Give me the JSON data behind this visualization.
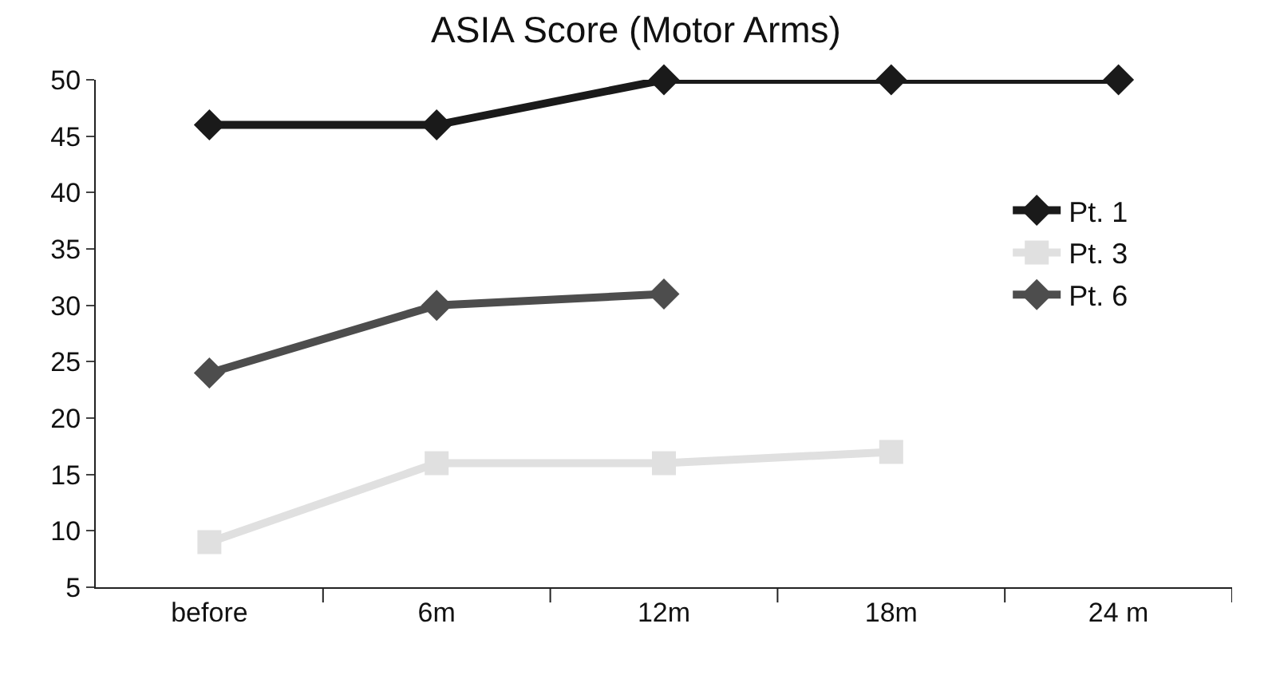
{
  "chart_data": {
    "type": "line",
    "title": "ASIA Score (Motor Arms)",
    "categories": [
      "before",
      "6m",
      "12m",
      "18m",
      "24 m"
    ],
    "series": [
      {
        "name": "Pt. 1",
        "color": "#1a1a1a",
        "marker": "diamond",
        "values": [
          46,
          46,
          50,
          50,
          50
        ]
      },
      {
        "name": "Pt. 3",
        "color": "#e0e0e0",
        "marker": "square",
        "values": [
          9,
          16,
          16,
          17,
          null
        ]
      },
      {
        "name": "Pt. 6",
        "color": "#4d4d4d",
        "marker": "diamond",
        "values": [
          24,
          30,
          31,
          null,
          null
        ]
      }
    ],
    "ylim": [
      5,
      50
    ],
    "yticks": [
      5,
      10,
      15,
      20,
      25,
      30,
      35,
      40,
      45,
      50
    ],
    "grid": false,
    "legend": "right",
    "line_style": "solid"
  }
}
